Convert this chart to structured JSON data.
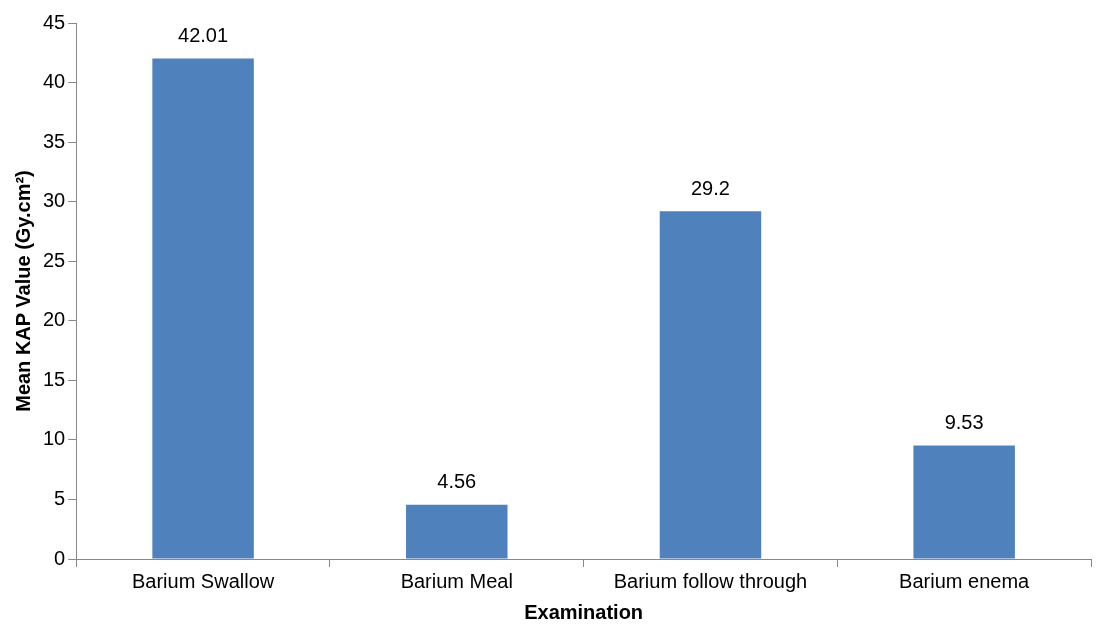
{
  "chart_data": {
    "type": "bar",
    "xlabel": "Examination",
    "ylabel": "Mean KAP Value (Gy.cm²)",
    "categories": [
      "Barium Swallow",
      "Barium Meal",
      "Barium follow through",
      "Barium enema"
    ],
    "values": [
      42.01,
      4.56,
      29.2,
      9.53
    ],
    "color": "#4f81bd",
    "ylim": [
      0,
      45
    ],
    "yticks": [
      0,
      5,
      10,
      15,
      20,
      25,
      30,
      35,
      40,
      45
    ],
    "grid": false,
    "legend": false,
    "data_labels": true
  }
}
